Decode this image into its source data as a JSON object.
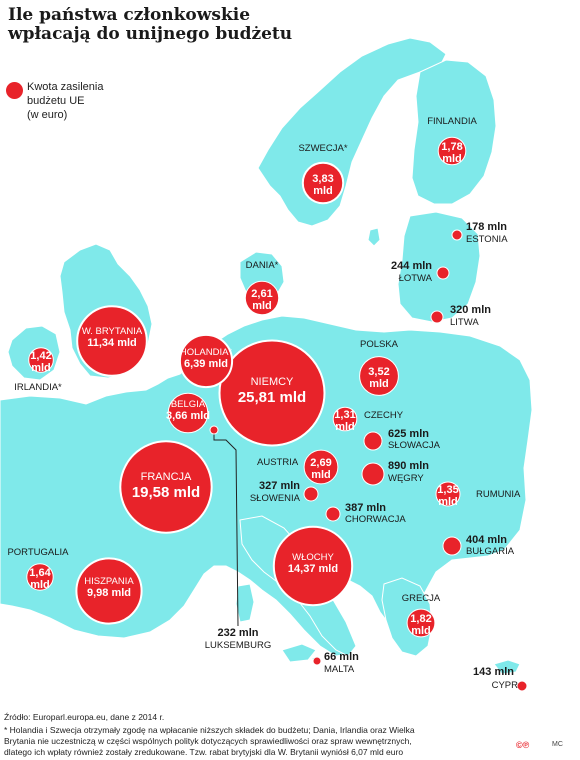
{
  "title_lines": [
    "Ile państwa członkowskie",
    "wpłacają do unijnego budżetu"
  ],
  "legend": {
    "lines": [
      "Kwota zasilenia",
      "budżetu UE",
      "(w euro)"
    ],
    "color": "#e8232a"
  },
  "colors": {
    "land": "#7fe9ea",
    "bubble": "#e8232a",
    "bubble_text": "#ffffff",
    "label": "#1a1a1a",
    "background": "#ffffff",
    "outside_land": "#ffffff"
  },
  "countries": [
    {
      "id": "niemcy",
      "name": "NIEMCY",
      "value": "25,81 mld",
      "amount_mln": 25810,
      "label_inside": true
    },
    {
      "id": "francja",
      "name": "FRANCJA",
      "value": "19,58 mld",
      "amount_mln": 19580,
      "label_inside": true
    },
    {
      "id": "wlochy",
      "name": "WŁOCHY",
      "value": "14,37 mld",
      "amount_mln": 14370,
      "label_inside": true
    },
    {
      "id": "wbrytania",
      "name": "W. BRYTANIA",
      "value": "11,34 mld",
      "amount_mln": 11340,
      "label_inside": true
    },
    {
      "id": "hiszpania",
      "name": "HISZPANIA",
      "value": "9,98 mld",
      "amount_mln": 9980,
      "label_inside": true
    },
    {
      "id": "holandia",
      "name": "HOLANDIA*",
      "value": "6,39 mld",
      "amount_mln": 6390,
      "label_inside": true
    },
    {
      "id": "szwecja",
      "name": "SZWECJA*",
      "value": "3,83 mld",
      "amount_mln": 3830,
      "label_inside": false
    },
    {
      "id": "belgia",
      "name": "BELGIA",
      "value": "3,66 mld",
      "amount_mln": 3660,
      "label_inside": true
    },
    {
      "id": "polska",
      "name": "POLSKA",
      "value": "3,52 mld",
      "amount_mln": 3520,
      "label_inside": false
    },
    {
      "id": "austria",
      "name": "AUSTRIA",
      "value": "2,69 mld",
      "amount_mln": 2690,
      "label_inside": false
    },
    {
      "id": "dania",
      "name": "DANIA*",
      "value": "2,61 mld",
      "amount_mln": 2610,
      "label_inside": false
    },
    {
      "id": "grecja",
      "name": "GRECJA",
      "value": "1,82 mld",
      "amount_mln": 1820,
      "label_inside": false
    },
    {
      "id": "finlandia",
      "name": "FINLANDIA",
      "value": "1,78 mld",
      "amount_mln": 1780,
      "label_inside": false
    },
    {
      "id": "portugalia",
      "name": "PORTUGALIA",
      "value": "1,64 mld",
      "amount_mln": 1640,
      "label_inside": false
    },
    {
      "id": "irlandia",
      "name": "IRLANDIA*",
      "value": "1,42 mld",
      "amount_mln": 1420,
      "label_inside": false
    },
    {
      "id": "rumunia",
      "name": "RUMUNIA",
      "value": "1,35 mld",
      "amount_mln": 1350,
      "label_inside": false
    },
    {
      "id": "czechy",
      "name": "CZECHY",
      "value": "1,31 mld",
      "amount_mln": 1310,
      "label_inside": false
    },
    {
      "id": "wegry",
      "name": "WĘGRY",
      "value": "890 mln",
      "amount_mln": 890,
      "label_inside": false
    },
    {
      "id": "slowacja",
      "name": "SŁOWACJA",
      "value": "625 mln",
      "amount_mln": 625,
      "label_inside": false
    },
    {
      "id": "bulgaria",
      "name": "BUŁGARIA",
      "value": "404 mln",
      "amount_mln": 404,
      "label_inside": false
    },
    {
      "id": "chorwacja",
      "name": "CHORWACJA",
      "value": "387 mln",
      "amount_mln": 387,
      "label_inside": false
    },
    {
      "id": "slowenia",
      "name": "SŁOWENIA",
      "value": "327 mln",
      "amount_mln": 327,
      "label_inside": false
    },
    {
      "id": "litwa",
      "name": "LITWA",
      "value": "320 mln",
      "amount_mln": 320,
      "label_inside": false
    },
    {
      "id": "lotwa",
      "name": "ŁOTWA",
      "value": "244 mln",
      "amount_mln": 244,
      "label_inside": false
    },
    {
      "id": "luksemburg",
      "name": "LUKSEMBURG",
      "value": "232 mln",
      "amount_mln": 232,
      "label_inside": false
    },
    {
      "id": "estonia",
      "name": "ESTONIA",
      "value": "178 mln",
      "amount_mln": 178,
      "label_inside": false
    },
    {
      "id": "cypr",
      "name": "CYPR",
      "value": "143 mln",
      "amount_mln": 143,
      "label_inside": false
    },
    {
      "id": "malta",
      "name": "MALTA",
      "value": "66 mln",
      "amount_mln": 66,
      "label_inside": false
    }
  ],
  "footer": {
    "source": "Źródło: Europarl.europa.eu, dane z 2014 r.",
    "note_lines": [
      "* Holandia i Szwecja otrzymały zgodę na wpłacanie niższych składek do budżetu; Dania, Irlandia oraz Wielka",
      "Brytania nie uczestniczą w części wspólnych polityk dotyczących sprawiedliwości oraz spraw wewnętrznych,",
      "dlatego ich wpłaty również zostały zredukowane. Tzw. rabat brytyjski dla W. Brytanii wyniósł 6,07 mld euro"
    ],
    "logo": "©℗",
    "credit": "MC"
  }
}
